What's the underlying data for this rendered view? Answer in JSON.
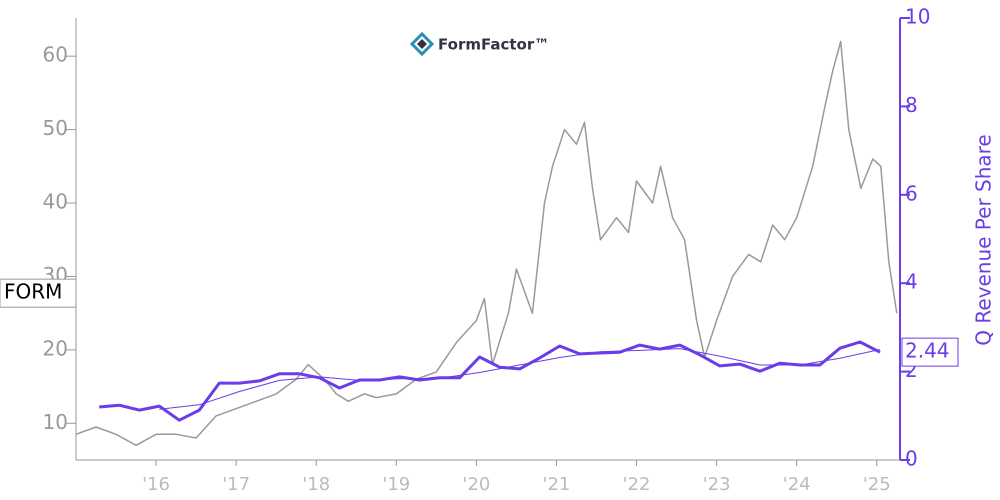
{
  "chart_data": {
    "type": "line",
    "logo": "FormFactor™",
    "y2label": "Q Revenue Per Share",
    "xlim": [
      2015.0,
      2025.29
    ],
    "xticks": [
      {
        "value": 2016,
        "label": "'16"
      },
      {
        "value": 2017,
        "label": "'17"
      },
      {
        "value": 2018,
        "label": "'18"
      },
      {
        "value": 2019,
        "label": "'19"
      },
      {
        "value": 2020,
        "label": "'20"
      },
      {
        "value": 2021,
        "label": "'21"
      },
      {
        "value": 2022,
        "label": "'22"
      },
      {
        "value": 2023,
        "label": "'23"
      },
      {
        "value": 2024,
        "label": "'24"
      },
      {
        "value": 2025,
        "label": "'25"
      }
    ],
    "ylim": [
      5,
      65.2
    ],
    "yticks": [
      10,
      20,
      30,
      40,
      50,
      60
    ],
    "y2lim": [
      0,
      10
    ],
    "y2ticks": [
      0,
      2,
      4,
      6,
      8,
      10
    ],
    "series": [
      {
        "name": "FORM",
        "color": "#999999",
        "width": 1.5,
        "x": [
          2015.0,
          2015.25,
          2015.5,
          2015.75,
          2016.0,
          2016.25,
          2016.5,
          2016.75,
          2017.0,
          2017.25,
          2017.5,
          2017.75,
          2017.9,
          2018.1,
          2018.25,
          2018.4,
          2018.6,
          2018.75,
          2019.0,
          2019.25,
          2019.5,
          2019.75,
          2020.0,
          2020.1,
          2020.2,
          2020.4,
          2020.5,
          2020.7,
          2020.85,
          2020.95,
          2021.1,
          2021.25,
          2021.35,
          2021.45,
          2021.55,
          2021.75,
          2021.9,
          2022.0,
          2022.2,
          2022.3,
          2022.45,
          2022.6,
          2022.75,
          2022.85,
          2023.0,
          2023.2,
          2023.4,
          2023.55,
          2023.7,
          2023.85,
          2024.0,
          2024.2,
          2024.35,
          2024.45,
          2024.55,
          2024.65,
          2024.8,
          2024.95,
          2025.05,
          2025.15,
          2025.25
        ],
        "values": [
          8.5,
          9.5,
          8.5,
          7,
          8.5,
          8.5,
          8,
          11,
          12,
          13,
          14,
          16,
          18,
          16,
          14,
          13,
          14,
          13.5,
          14,
          16,
          17,
          21,
          24,
          27,
          18,
          25,
          31,
          25,
          40,
          45,
          50,
          48,
          51,
          42,
          35,
          38,
          36,
          43,
          40,
          45,
          38,
          35,
          24,
          19,
          24,
          30,
          33,
          32,
          37,
          35,
          38,
          45,
          53,
          58,
          62,
          50,
          42,
          46,
          45,
          32,
          25
        ]
      },
      {
        "axis": "y2",
        "color": "#6a3de8",
        "width": 3,
        "x": [
          2015.29,
          2015.54,
          2015.79,
          2016.04,
          2016.29,
          2016.54,
          2016.79,
          2017.04,
          2017.29,
          2017.54,
          2017.79,
          2018.04,
          2018.29,
          2018.54,
          2018.79,
          2019.04,
          2019.29,
          2019.54,
          2019.79,
          2020.04,
          2020.29,
          2020.54,
          2020.79,
          2021.04,
          2021.29,
          2021.54,
          2021.79,
          2022.04,
          2022.29,
          2022.54,
          2022.79,
          2023.04,
          2023.29,
          2023.54,
          2023.79,
          2024.04,
          2024.29,
          2024.54,
          2024.79,
          2025.04
        ],
        "values": [
          1.2,
          1.24,
          1.13,
          1.22,
          0.9,
          1.13,
          1.74,
          1.74,
          1.79,
          1.95,
          1.95,
          1.86,
          1.63,
          1.81,
          1.81,
          1.88,
          1.81,
          1.86,
          1.86,
          2.33,
          2.1,
          2.06,
          2.31,
          2.58,
          2.4,
          2.42,
          2.44,
          2.6,
          2.51,
          2.6,
          2.38,
          2.13,
          2.17,
          2.01,
          2.19,
          2.15,
          2.15,
          2.53,
          2.67,
          2.44
        ]
      },
      {
        "axis": "y2",
        "color": "#6a3de8",
        "width": 1,
        "x": [
          2016.04,
          2016.54,
          2017.04,
          2017.54,
          2018.04,
          2018.54,
          2019.04,
          2019.54,
          2020.04,
          2020.54,
          2021.04,
          2021.54,
          2022.04,
          2022.54,
          2023.04,
          2023.54,
          2024.04,
          2024.54,
          2025.04
        ],
        "values": [
          1.15,
          1.25,
          1.55,
          1.8,
          1.88,
          1.8,
          1.84,
          1.85,
          1.98,
          2.15,
          2.32,
          2.45,
          2.48,
          2.52,
          2.35,
          2.15,
          2.15,
          2.3,
          2.5
        ]
      }
    ]
  }
}
